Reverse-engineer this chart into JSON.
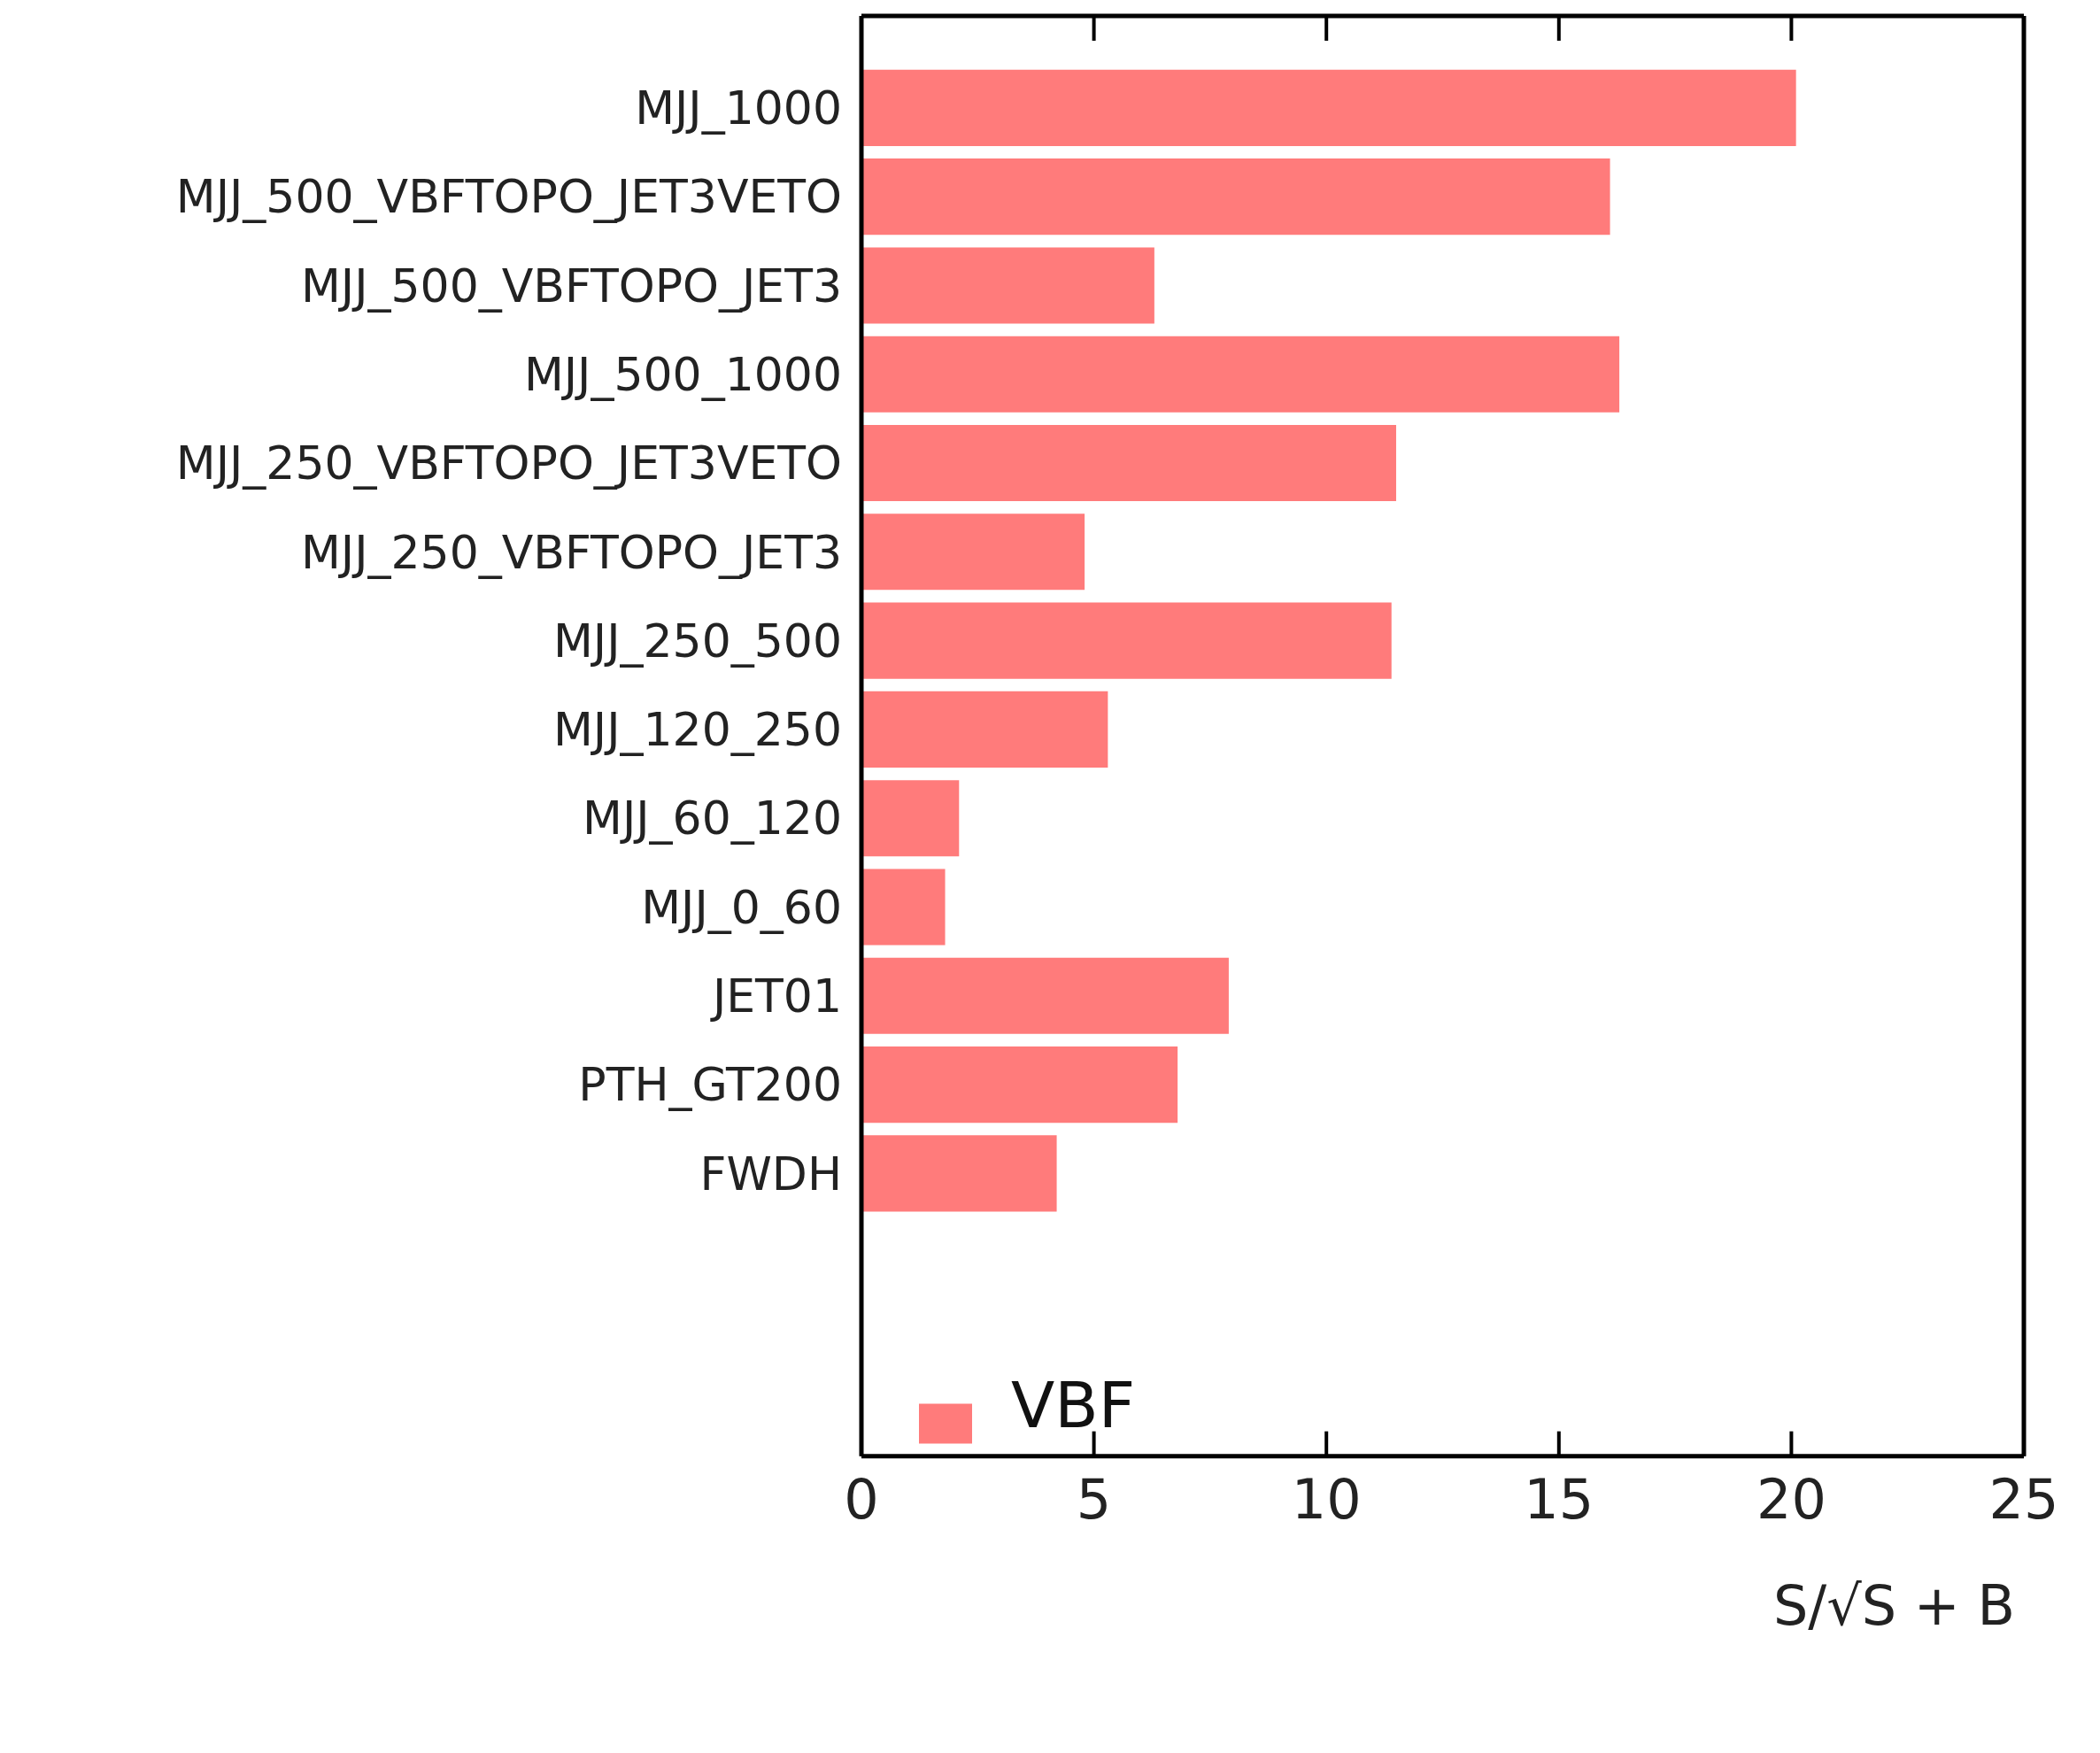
{
  "chart_data": {
    "type": "bar",
    "orientation": "horizontal",
    "xlabel": "S/√S + B",
    "categories": [
      "MJJ_1000",
      "MJJ_500_VBFTOPO_JET3VETO",
      "MJJ_500_VBFTOPO_JET3",
      "MJJ_500_1000",
      "MJJ_250_VBFTOPO_JET3VETO",
      "MJJ_250_VBFTOPO_JET3",
      "MJJ_250_500",
      "MJJ_120_250",
      "MJJ_60_120",
      "MJJ_0_60",
      "JET01",
      "PTH_GT200",
      "FWDH"
    ],
    "series": [
      {
        "name": "VBF",
        "color": "#ff7b7b",
        "values": [
          20.1,
          16.1,
          6.3,
          16.3,
          11.5,
          4.8,
          11.4,
          5.3,
          2.1,
          1.8,
          7.9,
          6.8,
          4.2
        ]
      }
    ],
    "xlim": [
      0,
      25
    ],
    "xticks": [
      0,
      5,
      10,
      15,
      20,
      25
    ],
    "legend": "bottom left",
    "grid": false
  }
}
